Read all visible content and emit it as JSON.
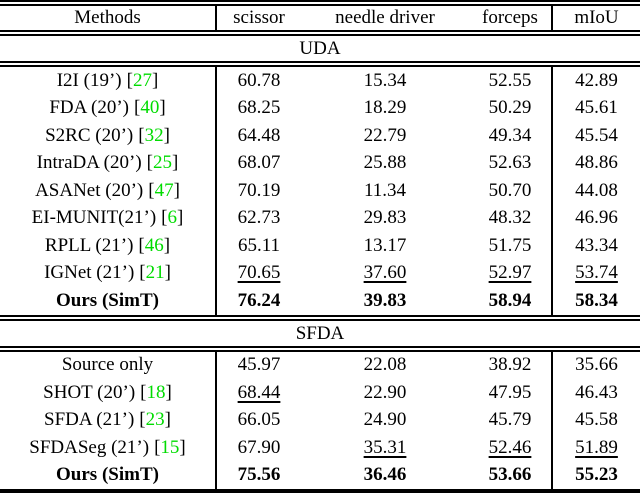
{
  "colors": {
    "citation": "#00dc00",
    "rule": "#000000",
    "background": "#ffffff"
  },
  "punct": {
    "open": "[",
    "close": "]"
  },
  "header": {
    "methods": "Methods",
    "metrics": [
      "scissor",
      "needle driver",
      "forceps"
    ],
    "miou": "mIoU"
  },
  "sections": [
    {
      "label": "UDA",
      "rows": [
        {
          "method": "I2I (19’)",
          "cite": "27",
          "values": [
            "60.78",
            "15.34",
            "52.55",
            "42.89"
          ],
          "bold": false,
          "underline": [
            false,
            false,
            false,
            false
          ]
        },
        {
          "method": "FDA (20’)",
          "cite": "40",
          "values": [
            "68.25",
            "18.29",
            "50.29",
            "45.61"
          ],
          "bold": false,
          "underline": [
            false,
            false,
            false,
            false
          ]
        },
        {
          "method": "S2RC (20’)",
          "cite": "32",
          "values": [
            "64.48",
            "22.79",
            "49.34",
            "45.54"
          ],
          "bold": false,
          "underline": [
            false,
            false,
            false,
            false
          ]
        },
        {
          "method": "IntraDA (20’)",
          "cite": "25",
          "values": [
            "68.07",
            "25.88",
            "52.63",
            "48.86"
          ],
          "bold": false,
          "underline": [
            false,
            false,
            false,
            false
          ]
        },
        {
          "method": "ASANet (20’)",
          "cite": "47",
          "values": [
            "70.19",
            "11.34",
            "50.70",
            "44.08"
          ],
          "bold": false,
          "underline": [
            false,
            false,
            false,
            false
          ]
        },
        {
          "method": "EI-MUNIT(21’)",
          "cite": "6",
          "values": [
            "62.73",
            "29.83",
            "48.32",
            "46.96"
          ],
          "bold": false,
          "underline": [
            false,
            false,
            false,
            false
          ]
        },
        {
          "method": "RPLL (21’)",
          "cite": "46",
          "values": [
            "65.11",
            "13.17",
            "51.75",
            "43.34"
          ],
          "bold": false,
          "underline": [
            false,
            false,
            false,
            false
          ]
        },
        {
          "method": "IGNet (21’)",
          "cite": "21",
          "values": [
            "70.65",
            "37.60",
            "52.97",
            "53.74"
          ],
          "bold": false,
          "underline": [
            true,
            true,
            true,
            true
          ]
        },
        {
          "method": "Ours (SimT)",
          "cite": "",
          "values": [
            "76.24",
            "39.83",
            "58.94",
            "58.34"
          ],
          "bold": true,
          "underline": [
            false,
            false,
            false,
            false
          ]
        }
      ]
    },
    {
      "label": "SFDA",
      "rows": [
        {
          "method": "Source only",
          "cite": "",
          "values": [
            "45.97",
            "22.08",
            "38.92",
            "35.66"
          ],
          "bold": false,
          "underline": [
            false,
            false,
            false,
            false
          ]
        },
        {
          "method": "SHOT (20’)",
          "cite": "18",
          "values": [
            "68.44",
            "22.90",
            "47.95",
            "46.43"
          ],
          "bold": false,
          "underline": [
            true,
            false,
            false,
            false
          ]
        },
        {
          "method": "SFDA (21’)",
          "cite": "23",
          "values": [
            "66.05",
            "24.90",
            "45.79",
            "45.58"
          ],
          "bold": false,
          "underline": [
            false,
            false,
            false,
            false
          ]
        },
        {
          "method": "SFDASeg (21’)",
          "cite": "15",
          "values": [
            "67.90",
            "35.31",
            "52.46",
            "51.89"
          ],
          "bold": false,
          "underline": [
            false,
            true,
            true,
            true
          ]
        },
        {
          "method": "Ours (SimT)",
          "cite": "",
          "values": [
            "75.56",
            "36.46",
            "53.66",
            "55.23"
          ],
          "bold": true,
          "underline": [
            false,
            false,
            false,
            false
          ]
        }
      ]
    }
  ]
}
